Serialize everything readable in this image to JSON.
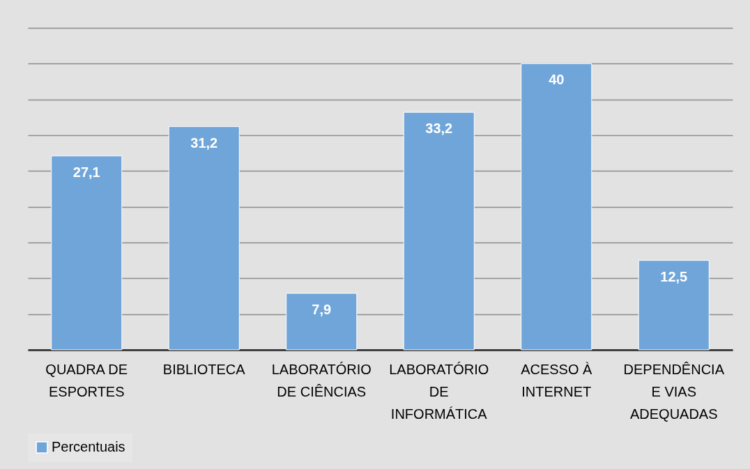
{
  "chart_data": {
    "type": "bar",
    "categories": [
      "QUADRA DE ESPORTES",
      "BIBLIOTECA",
      "LABORATÓRIO DE CIÊNCIAS",
      "LABORATÓRIO DE INFORMÁTICA",
      "ACESSO À INTERNET",
      "DEPENDÊNCIA E VIAS ADEQUADAS"
    ],
    "series": [
      {
        "name": "Percentuais",
        "color": "#6fa5d9",
        "values": [
          27.1,
          31.2,
          7.9,
          33.2,
          40,
          12.5
        ],
        "value_labels": [
          "27,1",
          "31,2",
          "7,9",
          "33,2",
          "40",
          "12,5"
        ]
      }
    ],
    "ylim": [
      0,
      45
    ],
    "yticks": [
      {
        "value": 0,
        "label": null
      },
      {
        "value": 5,
        "label": null
      },
      {
        "value": 10,
        "label": null
      },
      {
        "value": 15,
        "label": null
      },
      {
        "value": 20,
        "label": null
      },
      {
        "value": 25,
        "label": null
      },
      {
        "value": 30,
        "label": null
      },
      {
        "value": 35,
        "label": null
      },
      {
        "value": 40,
        "label": null
      },
      {
        "value": 45,
        "label": null
      }
    ],
    "tick_labels": "x",
    "grid": "y",
    "legend": "bottom"
  }
}
